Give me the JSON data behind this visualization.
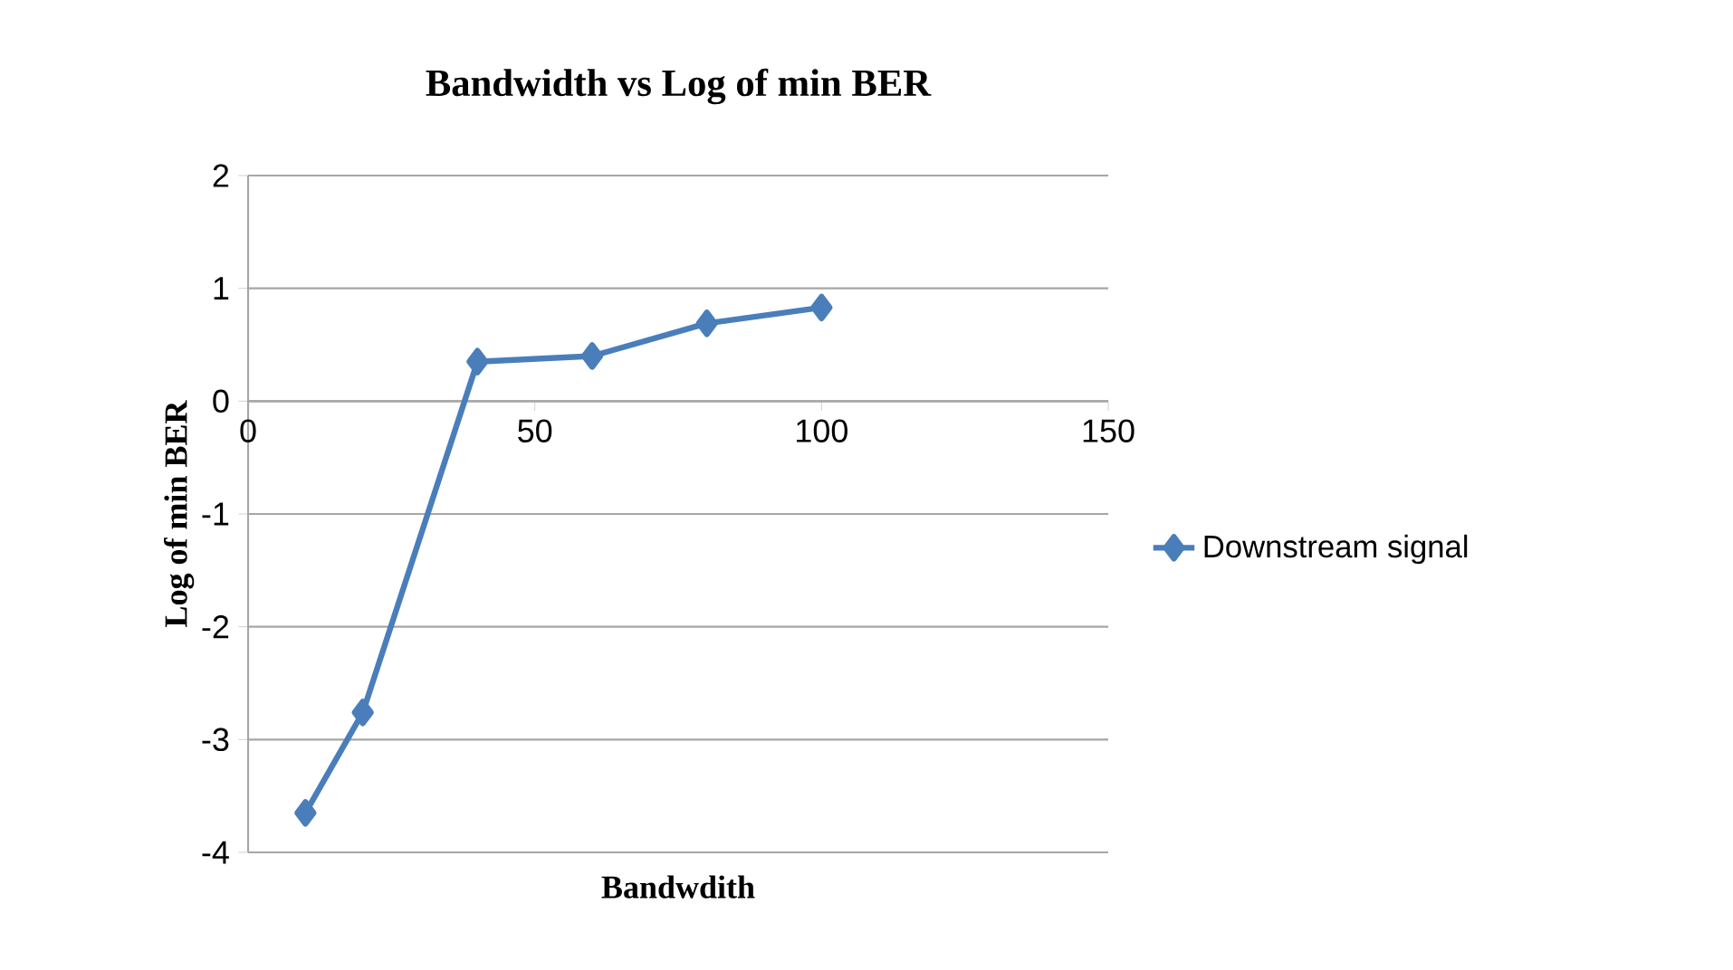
{
  "chart_data": {
    "type": "line",
    "title": "Bandwidth vs Log of min BER",
    "xlabel": "Bandwdith",
    "ylabel": "Log of min BER",
    "x": [
      10,
      20,
      40,
      60,
      80,
      100
    ],
    "series": [
      {
        "name": "Downstream signal",
        "color": "#4a7ebb",
        "values": [
          -3.65,
          -2.76,
          0.35,
          0.4,
          0.69,
          0.83
        ]
      }
    ],
    "xlim": [
      0,
      150
    ],
    "ylim": [
      -4,
      2
    ],
    "xticks": [
      0,
      50,
      100,
      150
    ],
    "yticks": [
      -4,
      -3,
      -2,
      -1,
      0,
      1,
      2
    ],
    "grid": "y",
    "legend": "right",
    "marker": "diamond",
    "line_style": "solid"
  }
}
